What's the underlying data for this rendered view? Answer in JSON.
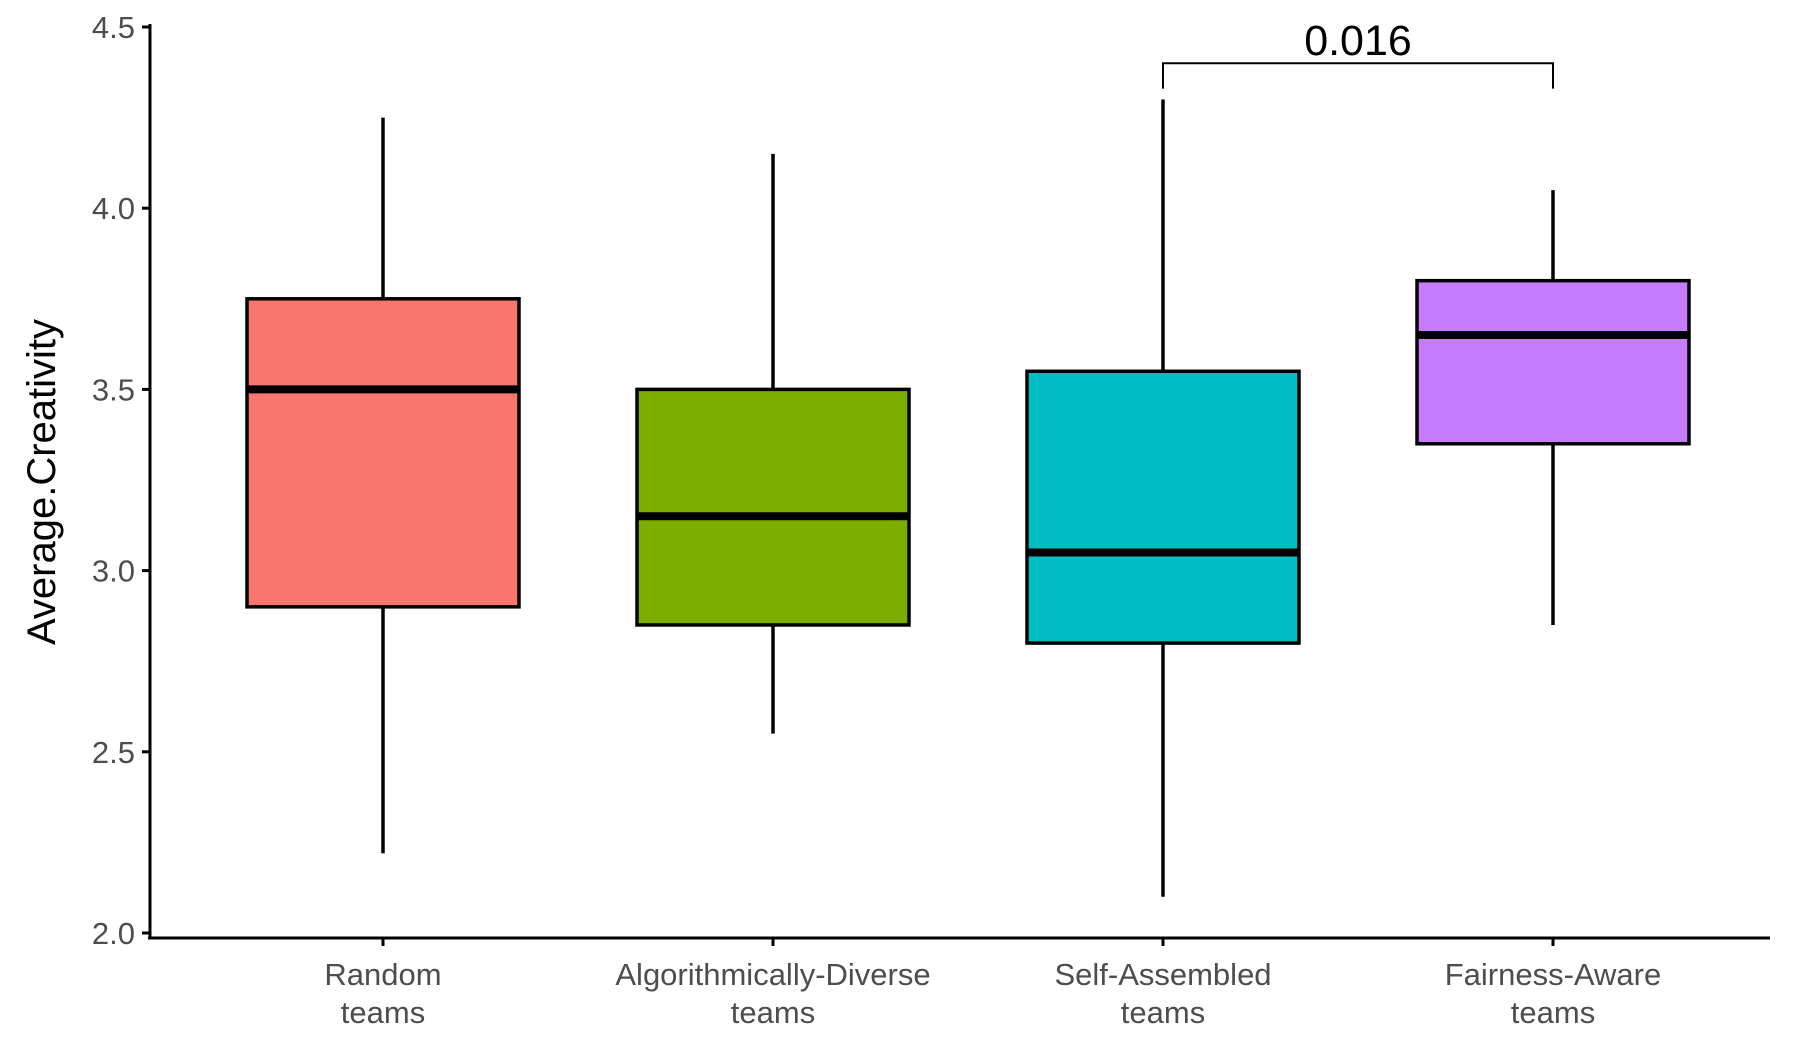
{
  "chart_data": {
    "type": "boxplot",
    "ylabel": "Average.Creativity",
    "xlabel": "",
    "ylim": [
      2.0,
      4.5
    ],
    "yticks": [
      "2.0",
      "2.5",
      "3.0",
      "3.5",
      "4.0",
      "4.5"
    ],
    "legend": "none",
    "grid": false,
    "categories": [
      {
        "line1": "Random",
        "line2": "teams",
        "whisker_low": 2.22,
        "q1": 2.9,
        "median": 3.5,
        "q3": 3.75,
        "whisker_high": 4.25,
        "color": "#F8766D"
      },
      {
        "line1": "Algorithmically-Diverse",
        "line2": "teams",
        "whisker_low": 2.55,
        "q1": 2.85,
        "median": 3.15,
        "q3": 3.5,
        "whisker_high": 4.15,
        "color": "#7CAE00"
      },
      {
        "line1": "Self-Assembled",
        "line2": "teams",
        "whisker_low": 2.1,
        "q1": 2.8,
        "median": 3.05,
        "q3": 3.55,
        "whisker_high": 4.3,
        "color": "#00BFC4"
      },
      {
        "line1": "Fairness-Aware",
        "line2": "teams",
        "whisker_low": 2.85,
        "q1": 3.35,
        "median": 3.65,
        "q3": 3.8,
        "whisker_high": 4.05,
        "color": "#C77CFF"
      }
    ],
    "annotations": [
      {
        "label": "0.016",
        "from_index": 2,
        "to_index": 3,
        "bracket_y": 4.4,
        "bracket_drop_y": 4.33
      }
    ]
  }
}
